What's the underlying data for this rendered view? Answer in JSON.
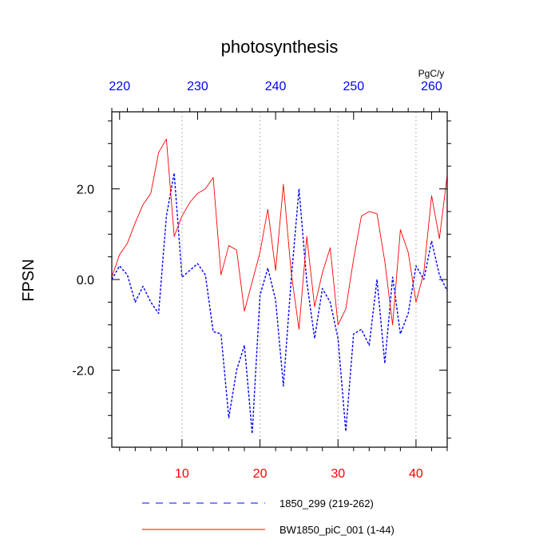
{
  "chart_data": {
    "type": "line",
    "title": "photosynthesis",
    "ylabel": "FPSN",
    "units": "PgC/y",
    "xlim": [
      1,
      44
    ],
    "ylim": [
      -3.7,
      3.7
    ],
    "yticks": [
      -2.0,
      0.0,
      2.0
    ],
    "ytick_labels": [
      "-2.0",
      "0.0",
      "2.0"
    ],
    "bottom_axis": {
      "ticks": [
        10,
        20,
        30,
        40
      ],
      "tick_labels": [
        "10",
        "20",
        "30",
        "40"
      ],
      "color": "#ff0000"
    },
    "top_axis": {
      "ticks": [
        220,
        230,
        240,
        250,
        260
      ],
      "tick_labels": [
        "220",
        "230",
        "240",
        "250",
        "260"
      ],
      "offset": 218,
      "color": "#0000ff"
    },
    "vertical_gridlines_at": [
      10,
      20,
      30,
      40
    ],
    "x": [
      1,
      2,
      3,
      4,
      5,
      6,
      7,
      8,
      9,
      10,
      11,
      12,
      13,
      14,
      15,
      16,
      17,
      18,
      19,
      20,
      21,
      22,
      23,
      24,
      25,
      26,
      27,
      28,
      29,
      30,
      31,
      32,
      33,
      34,
      35,
      36,
      37,
      38,
      39,
      40,
      41,
      42,
      43,
      44
    ],
    "series": [
      {
        "name": "1850_299 (219-262)",
        "color": "#0000ff",
        "dash": "dashed",
        "values": [
          0.0,
          0.3,
          0.1,
          -0.5,
          -0.15,
          -0.5,
          -0.75,
          1.4,
          2.35,
          0.05,
          0.2,
          0.35,
          0.1,
          -1.15,
          -1.2,
          -3.05,
          -2.0,
          -1.45,
          -3.4,
          -0.35,
          0.25,
          -0.45,
          -2.35,
          0.0,
          2.0,
          -0.05,
          -1.3,
          -0.2,
          -0.5,
          -1.3,
          -3.35,
          -1.2,
          -1.1,
          -1.45,
          0.0,
          -1.85,
          0.05,
          -1.2,
          -0.75,
          0.3,
          0.0,
          0.85,
          0.1,
          -0.25
        ]
      },
      {
        "name": "BW1850_piC_001 (1-44)",
        "color": "#ff0000",
        "dash": "solid",
        "values": [
          0.05,
          0.55,
          0.8,
          1.25,
          1.65,
          1.9,
          2.8,
          3.1,
          0.95,
          1.4,
          1.7,
          1.9,
          2.0,
          2.25,
          0.1,
          0.75,
          0.65,
          -0.7,
          -0.05,
          0.6,
          1.55,
          0.2,
          2.1,
          0.15,
          -1.1,
          0.95,
          -0.6,
          0.15,
          0.7,
          -1.0,
          -0.65,
          0.45,
          1.4,
          1.5,
          1.45,
          0.4,
          -1.0,
          1.1,
          0.6,
          -0.5,
          0.15,
          1.85,
          0.9,
          2.3
        ]
      }
    ],
    "legend_position": "bottom"
  }
}
